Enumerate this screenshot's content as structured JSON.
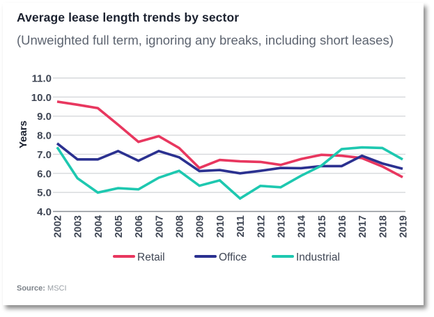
{
  "header": {
    "title": "Average lease length trends by sector",
    "subtitle": "(Unweighted full term, ignoring any breaks, including short leases)"
  },
  "footer": {
    "source_label": "Source:",
    "source_value": "MSCI"
  },
  "chart_data": {
    "type": "line",
    "title": "Average lease length trends by sector",
    "subtitle": "(Unweighted full term, ignoring any breaks, including short leases)",
    "xlabel": "",
    "ylabel": "Years",
    "ylim": [
      4.0,
      11.0
    ],
    "yticks": [
      "4.0",
      "5.0",
      "6.0",
      "7.0",
      "8.0",
      "9.0",
      "10.0",
      "11.0"
    ],
    "grid": true,
    "legend_position": "bottom-center",
    "x": [
      "2002",
      "2003",
      "2004",
      "2005",
      "2006",
      "2007",
      "2008",
      "2009",
      "2010",
      "2011",
      "2012",
      "2013",
      "2014",
      "2015",
      "2016",
      "2017",
      "2018",
      "2019"
    ],
    "series": [
      {
        "name": "Retail",
        "color": "#e8375f",
        "values": [
          9.76,
          9.6,
          9.42,
          8.55,
          7.65,
          7.95,
          7.33,
          6.28,
          6.7,
          6.63,
          6.6,
          6.44,
          6.75,
          6.97,
          6.92,
          6.8,
          6.36,
          5.8
        ]
      },
      {
        "name": "Office",
        "color": "#2b3190",
        "values": [
          7.57,
          6.73,
          6.73,
          7.17,
          6.66,
          7.17,
          6.84,
          6.12,
          6.17,
          6.0,
          6.13,
          6.28,
          6.27,
          6.38,
          6.38,
          6.92,
          6.52,
          6.24
        ]
      },
      {
        "name": "Industrial",
        "color": "#1ec8b0",
        "values": [
          7.37,
          5.74,
          4.99,
          5.22,
          5.16,
          5.77,
          6.13,
          5.35,
          5.63,
          4.68,
          5.34,
          5.27,
          5.87,
          6.4,
          7.27,
          7.36,
          7.33,
          6.73
        ]
      }
    ]
  }
}
